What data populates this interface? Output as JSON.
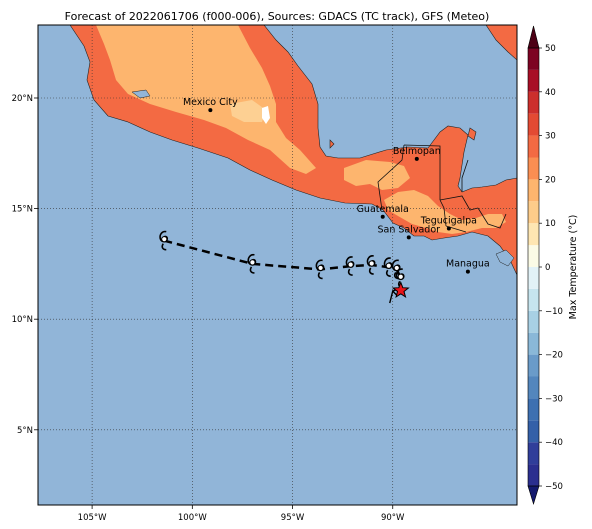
{
  "title": "Forecast of 2022061706 (f000-006), Sources: GDACS (TC track), GFS (Meteo)",
  "map": {
    "lon_range": [
      -107.7,
      -83.8
    ],
    "lat_range": [
      1.6,
      23.3
    ],
    "x_ticks": [
      {
        "lon": -105,
        "label": "105°W"
      },
      {
        "lon": -100,
        "label": "100°W"
      },
      {
        "lon": -95,
        "label": "95°W"
      },
      {
        "lon": -90,
        "label": "90°W"
      }
    ],
    "y_ticks": [
      {
        "lat": 20,
        "label": "20°N"
      },
      {
        "lat": 15,
        "label": "15°N"
      },
      {
        "lat": 10,
        "label": "10°N"
      },
      {
        "lat": 5,
        "label": "5°N"
      }
    ],
    "grid": true,
    "ocean_color": "#91b5d8",
    "cities": [
      {
        "name": "Mexico City",
        "lon": -99.1,
        "lat": 19.45
      },
      {
        "name": "Belmopan",
        "lon": -88.8,
        "lat": 17.25
      },
      {
        "name": "Guatemala",
        "lon": -90.5,
        "lat": 14.63
      },
      {
        "name": "Tegucigalpa",
        "lon": -87.2,
        "lat": 14.1
      },
      {
        "name": "San Salvador",
        "lon": -89.2,
        "lat": 13.7
      },
      {
        "name": "Managua",
        "lon": -86.25,
        "lat": 12.15
      }
    ],
    "track": [
      {
        "lon": -101.4,
        "lat": 13.55,
        "kind": "forecast"
      },
      {
        "lon": -97.0,
        "lat": 12.5,
        "kind": "forecast"
      },
      {
        "lon": -93.6,
        "lat": 12.25,
        "kind": "forecast"
      },
      {
        "lon": -92.1,
        "lat": 12.4,
        "kind": "forecast"
      },
      {
        "lon": -91.05,
        "lat": 12.45,
        "kind": "forecast"
      },
      {
        "lon": -90.2,
        "lat": 12.35,
        "kind": "forecast"
      },
      {
        "lon": -89.8,
        "lat": 12.25,
        "kind": "forecast"
      },
      {
        "lon": -89.6,
        "lat": 11.85,
        "kind": "forecast"
      },
      {
        "lon": -89.95,
        "lat": 11.0,
        "kind": "observed"
      },
      {
        "lon": -89.6,
        "lat": 11.3,
        "kind": "current"
      }
    ]
  },
  "colorbar": {
    "label": "Max Temperature (°C)",
    "min": -50,
    "max": 50,
    "ticks": [
      50,
      40,
      30,
      20,
      10,
      0,
      -10,
      -20,
      -30,
      -40,
      -50
    ],
    "bands": [
      {
        "from": -50,
        "to": -45,
        "color": "#2b2f8f"
      },
      {
        "from": -45,
        "to": -40,
        "color": "#303e9a"
      },
      {
        "from": -40,
        "to": -35,
        "color": "#3460a8"
      },
      {
        "from": -35,
        "to": -30,
        "color": "#3d70b1"
      },
      {
        "from": -30,
        "to": -25,
        "color": "#5386bd"
      },
      {
        "from": -25,
        "to": -20,
        "color": "#6a9bc9"
      },
      {
        "from": -20,
        "to": -15,
        "color": "#8ab8d8"
      },
      {
        "from": -15,
        "to": -10,
        "color": "#a8d0e4"
      },
      {
        "from": -10,
        "to": -5,
        "color": "#c6e4ee"
      },
      {
        "from": -5,
        "to": 0,
        "color": "#e2f2f7"
      },
      {
        "from": 0,
        "to": 5,
        "color": "#fbfbe6"
      },
      {
        "from": 5,
        "to": 10,
        "color": "#fee6b2"
      },
      {
        "from": 10,
        "to": 15,
        "color": "#fdcc8a"
      },
      {
        "from": 15,
        "to": 20,
        "color": "#fdb56e"
      },
      {
        "from": 20,
        "to": 25,
        "color": "#fa8e52"
      },
      {
        "from": 25,
        "to": 30,
        "color": "#f36a43"
      },
      {
        "from": 30,
        "to": 35,
        "color": "#e34a33"
      },
      {
        "from": 35,
        "to": 40,
        "color": "#cc2f2c"
      },
      {
        "from": 40,
        "to": 45,
        "color": "#a80e26"
      },
      {
        "from": 45,
        "to": 50,
        "color": "#7d0323"
      }
    ],
    "under_color": "#141a6e",
    "over_color": "#4d0015"
  }
}
